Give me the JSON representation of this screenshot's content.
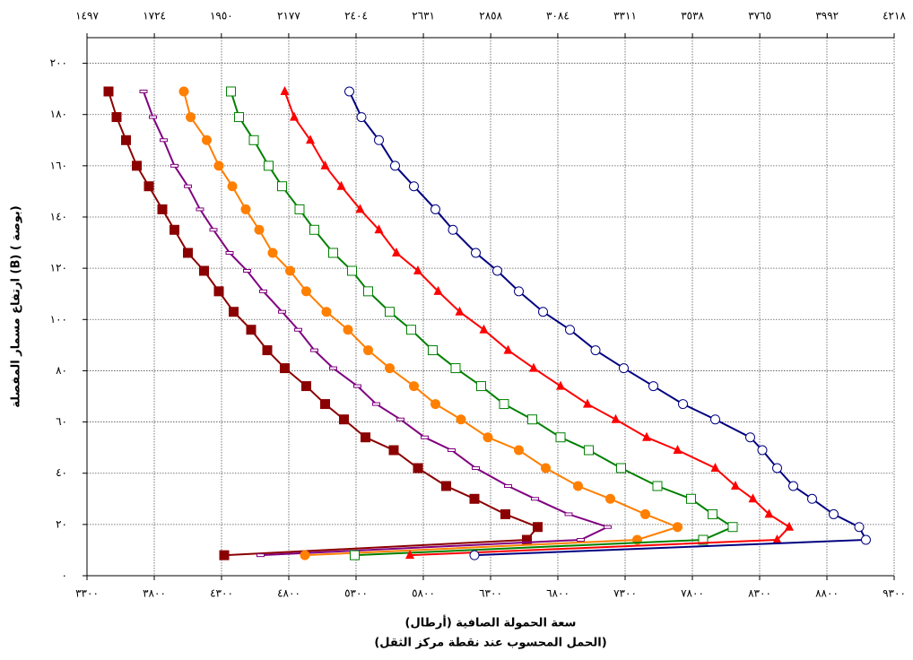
{
  "chart_data": {
    "type": "line",
    "x_label": "سعة الحمولة الصافية (أرطال)",
    "x_label_2": "(الحمل المحسوب عند نقطة مركز الثقل)",
    "y_label": "ارتفاع مسمار المفصلة (B) ( بوصة)",
    "xlim": [
      3300,
      9300
    ],
    "xticks": [
      {
        "value": 3300,
        "label": "٣٣٠٠"
      },
      {
        "value": 3800,
        "label": "٣٨٠٠"
      },
      {
        "value": 4300,
        "label": "٤٣٠٠"
      },
      {
        "value": 4800,
        "label": "٤٨٠٠"
      },
      {
        "value": 5300,
        "label": "٥٣٠٠"
      },
      {
        "value": 5800,
        "label": "٥٨٠٠"
      },
      {
        "value": 6300,
        "label": "٦٣٠٠"
      },
      {
        "value": 6800,
        "label": "٦٨٠٠"
      },
      {
        "value": 7300,
        "label": "٧٣٠٠"
      },
      {
        "value": 7800,
        "label": "٧٨٠٠"
      },
      {
        "value": 8300,
        "label": "٨٣٠٠"
      },
      {
        "value": 8800,
        "label": "٨٨٠٠"
      },
      {
        "value": 9300,
        "label": "٩٣٠٠"
      }
    ],
    "x2lim": [
      1497,
      4218
    ],
    "x2ticks": [
      {
        "value": 1497,
        "label": "١٤٩٧"
      },
      {
        "value": 1724,
        "label": "١٧٢٤"
      },
      {
        "value": 1950,
        "label": "١٩٥٠"
      },
      {
        "value": 2177,
        "label": "٢١٧٧"
      },
      {
        "value": 2404,
        "label": "٢٤٠٤"
      },
      {
        "value": 2631,
        "label": "٢٦٣١"
      },
      {
        "value": 2858,
        "label": "٢٨٥٨"
      },
      {
        "value": 3084,
        "label": "٣٠٨٤"
      },
      {
        "value": 3311,
        "label": "٣٣١١"
      },
      {
        "value": 3538,
        "label": "٣٥٣٨"
      },
      {
        "value": 3765,
        "label": "٣٧٦٥"
      },
      {
        "value": 3992,
        "label": "٣٩٩٢"
      },
      {
        "value": 4218,
        "label": "٤٢١٨"
      }
    ],
    "ylim": [
      0,
      210
    ],
    "yticks": [
      {
        "value": 0,
        "label": "٠"
      },
      {
        "value": 20,
        "label": "٢٠"
      },
      {
        "value": 40,
        "label": "٤٠"
      },
      {
        "value": 60,
        "label": "٦٠"
      },
      {
        "value": 80,
        "label": "٨٠"
      },
      {
        "value": 100,
        "label": "١٠٠"
      },
      {
        "value": 120,
        "label": "١٢٠"
      },
      {
        "value": 140,
        "label": "١٤٠"
      },
      {
        "value": 160,
        "label": "١٦٠"
      },
      {
        "value": 180,
        "label": "١٨٠"
      },
      {
        "value": 200,
        "label": "٢٠٠"
      }
    ],
    "grid": true,
    "series": [
      {
        "color": "#8b0000",
        "marker": "square",
        "x": [
          3460,
          3520,
          3590,
          3670,
          3760,
          3860,
          3950,
          4050,
          4170,
          4280,
          4390,
          4520,
          4640,
          4770,
          4930,
          5070,
          5210,
          5370,
          5580,
          5760,
          5970,
          6180,
          6410,
          6650,
          6570,
          4320
        ],
        "values": [
          189,
          179,
          170,
          160,
          152,
          143,
          135,
          126,
          119,
          111,
          103,
          96,
          88,
          81,
          74,
          67,
          61,
          54,
          49,
          42,
          35,
          30,
          24,
          19,
          14,
          8
        ]
      },
      {
        "color": "#800080",
        "marker": "dash",
        "x": [
          3720,
          3790,
          3870,
          3950,
          4050,
          4140,
          4240,
          4360,
          4490,
          4610,
          4750,
          4870,
          4990,
          5130,
          5310,
          5450,
          5630,
          5810,
          6010,
          6190,
          6430,
          6630,
          6880,
          7170,
          6970,
          4590
        ],
        "values": [
          189,
          179,
          170,
          160,
          152,
          143,
          135,
          126,
          119,
          111,
          103,
          96,
          88,
          81,
          74,
          67,
          61,
          54,
          49,
          42,
          35,
          30,
          24,
          19,
          14,
          8
        ]
      },
      {
        "color": "#ff7f00",
        "marker": "circle",
        "x": [
          4020,
          4070,
          4190,
          4280,
          4380,
          4480,
          4580,
          4680,
          4810,
          4930,
          5080,
          5240,
          5390,
          5550,
          5730,
          5890,
          6080,
          6280,
          6510,
          6710,
          6950,
          7190,
          7450,
          7690,
          7390,
          4920
        ],
        "values": [
          189,
          179,
          170,
          160,
          152,
          143,
          135,
          126,
          119,
          111,
          103,
          96,
          88,
          81,
          74,
          67,
          61,
          54,
          49,
          42,
          35,
          30,
          24,
          19,
          14,
          8
        ]
      },
      {
        "color": "#008000",
        "marker": "open-square",
        "x": [
          4370,
          4430,
          4540,
          4650,
          4750,
          4880,
          4990,
          5130,
          5270,
          5390,
          5550,
          5710,
          5870,
          6040,
          6230,
          6400,
          6610,
          6820,
          7030,
          7270,
          7540,
          7790,
          7950,
          8100,
          7880,
          5290
        ],
        "values": [
          189,
          179,
          170,
          160,
          152,
          143,
          135,
          126,
          119,
          111,
          103,
          96,
          88,
          81,
          74,
          67,
          61,
          54,
          49,
          42,
          35,
          30,
          24,
          19,
          14,
          8
        ]
      },
      {
        "color": "#ff0000",
        "marker": "triangle",
        "x": [
          4770,
          4840,
          4960,
          5070,
          5190,
          5330,
          5470,
          5600,
          5760,
          5910,
          6070,
          6250,
          6430,
          6620,
          6820,
          7020,
          7230,
          7460,
          7690,
          7970,
          8120,
          8250,
          8370,
          8520,
          8430,
          5700
        ],
        "values": [
          189,
          179,
          170,
          160,
          152,
          143,
          135,
          126,
          119,
          111,
          103,
          96,
          88,
          81,
          74,
          67,
          61,
          54,
          49,
          42,
          35,
          30,
          24,
          19,
          14,
          8
        ]
      },
      {
        "color": "#000080",
        "marker": "open-circle",
        "x": [
          5250,
          5340,
          5470,
          5590,
          5730,
          5890,
          6020,
          6190,
          6350,
          6510,
          6690,
          6890,
          7080,
          7290,
          7510,
          7730,
          7970,
          8230,
          8320,
          8430,
          8550,
          8690,
          8850,
          9040,
          9090,
          6180
        ],
        "values": [
          189,
          179,
          170,
          160,
          152,
          143,
          135,
          126,
          119,
          111,
          103,
          96,
          88,
          81,
          74,
          67,
          61,
          54,
          49,
          42,
          35,
          30,
          24,
          19,
          14,
          8
        ]
      }
    ]
  }
}
